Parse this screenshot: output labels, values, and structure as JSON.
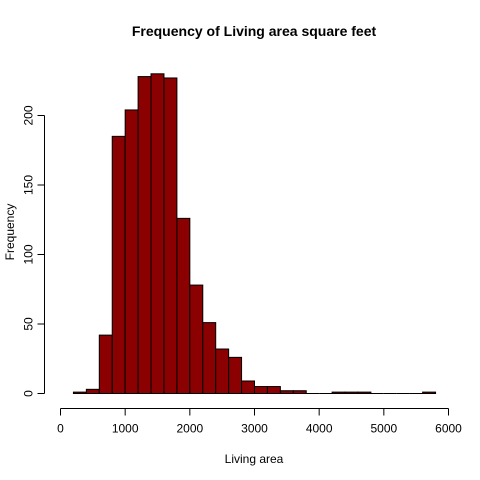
{
  "chart_data": {
    "type": "bar",
    "title": "Frequency of Living area square feet",
    "xlabel": "Living area",
    "ylabel": "Frequency",
    "xlim": [
      0,
      6000
    ],
    "ylim": [
      0,
      230
    ],
    "x_ticks": [
      0,
      1000,
      2000,
      3000,
      4000,
      5000,
      6000
    ],
    "y_ticks": [
      0,
      50,
      100,
      150,
      200
    ],
    "bin_width": 200,
    "bins": [
      {
        "start": 200,
        "end": 400,
        "count": 1
      },
      {
        "start": 400,
        "end": 600,
        "count": 3
      },
      {
        "start": 600,
        "end": 800,
        "count": 42
      },
      {
        "start": 800,
        "end": 1000,
        "count": 185
      },
      {
        "start": 1000,
        "end": 1200,
        "count": 204
      },
      {
        "start": 1200,
        "end": 1400,
        "count": 228
      },
      {
        "start": 1400,
        "end": 1600,
        "count": 230
      },
      {
        "start": 1600,
        "end": 1800,
        "count": 227
      },
      {
        "start": 1800,
        "end": 2000,
        "count": 126
      },
      {
        "start": 2000,
        "end": 2200,
        "count": 78
      },
      {
        "start": 2200,
        "end": 2400,
        "count": 51
      },
      {
        "start": 2400,
        "end": 2600,
        "count": 32
      },
      {
        "start": 2600,
        "end": 2800,
        "count": 26
      },
      {
        "start": 2800,
        "end": 3000,
        "count": 9
      },
      {
        "start": 3000,
        "end": 3200,
        "count": 5
      },
      {
        "start": 3200,
        "end": 3400,
        "count": 5
      },
      {
        "start": 3400,
        "end": 3600,
        "count": 2
      },
      {
        "start": 3600,
        "end": 3800,
        "count": 2
      },
      {
        "start": 3800,
        "end": 4000,
        "count": 0
      },
      {
        "start": 4000,
        "end": 4200,
        "count": 0
      },
      {
        "start": 4200,
        "end": 4400,
        "count": 1
      },
      {
        "start": 4400,
        "end": 4600,
        "count": 1
      },
      {
        "start": 4600,
        "end": 4800,
        "count": 1
      },
      {
        "start": 4800,
        "end": 5000,
        "count": 0
      },
      {
        "start": 5000,
        "end": 5200,
        "count": 0
      },
      {
        "start": 5200,
        "end": 5400,
        "count": 0
      },
      {
        "start": 5400,
        "end": 5600,
        "count": 0
      },
      {
        "start": 5600,
        "end": 5800,
        "count": 1
      }
    ],
    "bar_color": "#8b0000",
    "grid": false
  }
}
